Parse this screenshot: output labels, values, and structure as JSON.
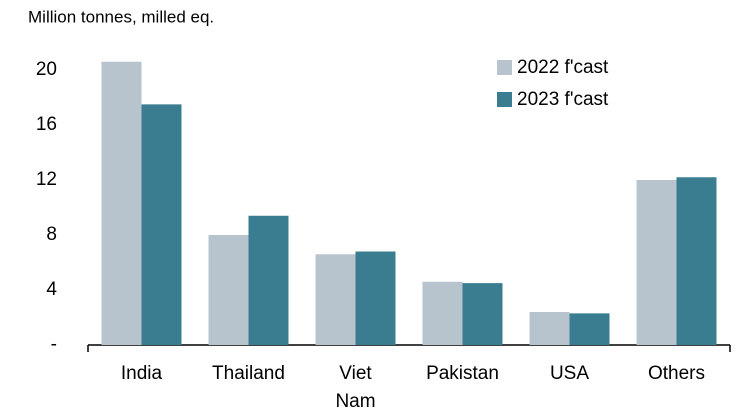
{
  "chart_data": {
    "type": "bar",
    "subtitle": "Million tonnes, milled eq.",
    "categories": [
      "India",
      "Thailand",
      "Viet Nam",
      "Pakistan",
      "USA",
      "Others"
    ],
    "series": [
      {
        "name": "2022 f'cast",
        "color": "#b7c4ce",
        "values": [
          20.6,
          8.0,
          6.6,
          4.6,
          2.4,
          12.0
        ]
      },
      {
        "name": "2023 f'cast",
        "color": "#3a7d91",
        "values": [
          17.5,
          9.4,
          6.8,
          4.5,
          2.3,
          12.2
        ]
      }
    ],
    "ylim": [
      0,
      22
    ],
    "yticks": [
      {
        "value": 0,
        "label": "-"
      },
      4,
      8,
      12,
      16,
      20
    ],
    "grid": false,
    "legend": "upper right"
  }
}
